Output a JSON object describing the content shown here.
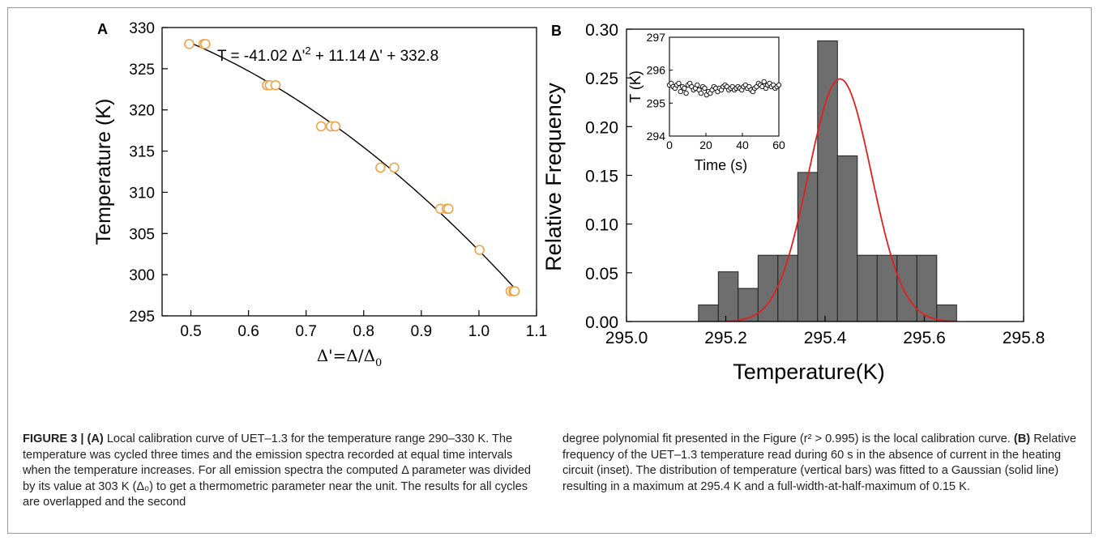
{
  "figure": {
    "caption_left": [
      {
        "bold": "FIGURE 3 | (A)",
        "text": " Local calibration curve of UET–1.3 for the temperature range 290–330 K. The temperature was cycled three times and the emission spectra recorded at equal time intervals when the temperature increases. For all emission spectra the computed Δ parameter was divided by its value at 303 K (Δ₀) to get a thermometric parameter near the unit. The results for all cycles are overlapped and the second"
      }
    ],
    "caption_right": [
      {
        "text": "degree polynomial fit presented in the Figure (r² > 0.995) is the local calibration curve. "
      },
      {
        "bold": "(B)",
        "text": " Relative frequency of the UET–1.3 temperature read during 60 s in the absence of current in the heating circuit (inset). The distribution of temperature (vertical bars) was fitted to a Gaussian (solid line) resulting in a maximum at 295.4 K and a full-width-at-half-maximum of 0.15 K."
      }
    ]
  },
  "chart_data": [
    {
      "panel": "A",
      "type": "scatter",
      "title": "",
      "xlabel": "Δ'=Δ/Δ0",
      "ylabel": "Temperature (K)",
      "xlim": [
        0.45,
        1.1
      ],
      "ylim": [
        295,
        330
      ],
      "xticks": [
        "0.5",
        "0.6",
        "0.7",
        "0.8",
        "0.9",
        "1.0",
        "1.1"
      ],
      "yticks": [
        "295",
        "300",
        "305",
        "310",
        "315",
        "320",
        "325",
        "330"
      ],
      "annotation": "T = -41.02 Δ'2 + 11.14 Δ' + 332.8",
      "fit": {
        "a": -41.02,
        "b": 11.14,
        "c": 332.8,
        "x_range": [
          0.5,
          1.06
        ]
      },
      "marker_color": "#f0a040",
      "line_color": "#000000",
      "points": [
        {
          "x": 0.497,
          "y": 328
        },
        {
          "x": 0.522,
          "y": 328
        },
        {
          "x": 0.525,
          "y": 328
        },
        {
          "x": 0.632,
          "y": 323
        },
        {
          "x": 0.637,
          "y": 323
        },
        {
          "x": 0.647,
          "y": 323
        },
        {
          "x": 0.726,
          "y": 318
        },
        {
          "x": 0.743,
          "y": 318
        },
        {
          "x": 0.751,
          "y": 318
        },
        {
          "x": 0.829,
          "y": 313
        },
        {
          "x": 0.853,
          "y": 313
        },
        {
          "x": 0.933,
          "y": 308
        },
        {
          "x": 0.944,
          "y": 308
        },
        {
          "x": 0.947,
          "y": 308
        },
        {
          "x": 1.001,
          "y": 303
        },
        {
          "x": 1.055,
          "y": 298
        },
        {
          "x": 1.06,
          "y": 298
        },
        {
          "x": 1.062,
          "y": 298
        }
      ]
    },
    {
      "panel": "B",
      "type": "bar",
      "title": "",
      "xlabel": "Temperature(K)",
      "ylabel": "Relative Frequency",
      "xlim": [
        295.0,
        295.8
      ],
      "ylim": [
        0.0,
        0.3
      ],
      "xticks": [
        "295.0",
        "295.2",
        "295.4",
        "295.6",
        "295.8"
      ],
      "yticks": [
        "0.00",
        "0.05",
        "0.10",
        "0.15",
        "0.20",
        "0.25",
        "0.30"
      ],
      "bar_color": "#6e6e6e",
      "bar_width": 0.04,
      "categories": [
        295.165,
        295.205,
        295.245,
        295.285,
        295.325,
        295.365,
        295.405,
        295.445,
        295.485,
        295.525,
        295.565,
        295.605,
        295.645,
        295.685
      ],
      "values": [
        0.017,
        0.051,
        0.034,
        0.068,
        0.068,
        0.153,
        0.288,
        0.17,
        0.068,
        0.068,
        0.068,
        0.068,
        0.017,
        0
      ],
      "gaussian": {
        "center": 295.43,
        "fwhm": 0.15,
        "amplitude": 0.249,
        "color": "#e02020"
      },
      "inset": {
        "type": "scatter",
        "xlabel": "Time (s)",
        "ylabel": "T (K)",
        "xlim": [
          0,
          60
        ],
        "ylim": [
          294,
          297
        ],
        "xticks": [
          "0",
          "20",
          "40",
          "60"
        ],
        "yticks": [
          "294",
          "295",
          "296",
          "297"
        ],
        "y": [
          295.55,
          295.6,
          295.5,
          295.45,
          295.55,
          295.6,
          295.35,
          295.5,
          295.45,
          295.3,
          295.55,
          295.6,
          295.5,
          295.4,
          295.45,
          295.55,
          295.4,
          295.3,
          295.5,
          295.45,
          295.25,
          295.35,
          295.3,
          295.4,
          295.5,
          295.45,
          295.35,
          295.45,
          295.4,
          295.5,
          295.55,
          295.5,
          295.4,
          295.45,
          295.5,
          295.4,
          295.45,
          295.5,
          295.45,
          295.4,
          295.5,
          295.55,
          295.45,
          295.5,
          295.4,
          295.35,
          295.45,
          295.5,
          295.6,
          295.55,
          295.5,
          295.65,
          295.45,
          295.55,
          295.6,
          295.5,
          295.55,
          295.45,
          295.5,
          295.55
        ]
      }
    }
  ]
}
